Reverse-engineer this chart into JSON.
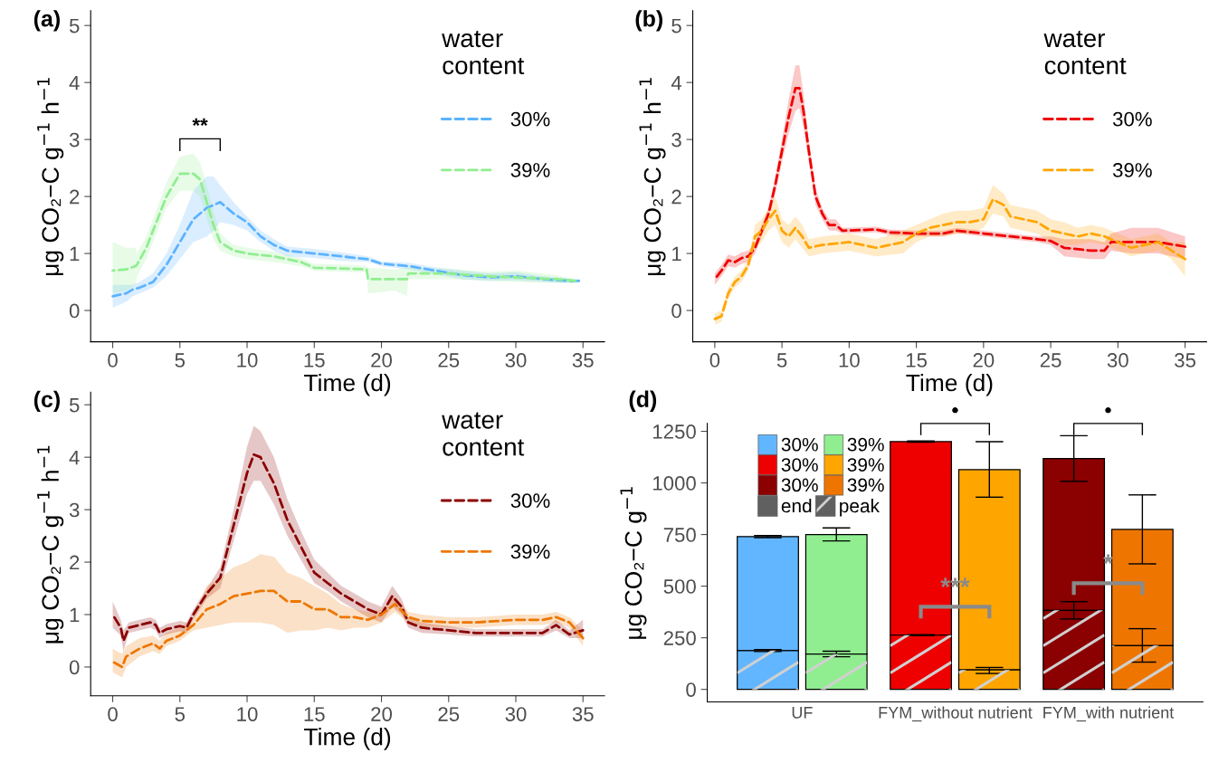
{
  "chart_data": [
    {
      "type": "line",
      "title": "(a)",
      "xlabel": "Time (d)",
      "ylabel": "μg CO₂−C g$^{−1}$ h$^{−1}$",
      "legend_title": "water\ncontent",
      "legend": "top right",
      "line_style": "dashed",
      "grid": false,
      "xlim": [
        -1.64,
        36.6
      ],
      "xticks": [
        0,
        5,
        10,
        15,
        20,
        25,
        30,
        35
      ],
      "ylim": [
        -0.55,
        5.26
      ],
      "yticks": [
        0,
        1,
        2,
        3,
        4,
        5
      ],
      "annotations": [
        "**"
      ],
      "series": [
        {
          "name": "30%",
          "color": "#5cb3ff",
          "x": [
            0,
            1,
            1.5,
            2,
            3,
            4,
            5,
            6,
            7,
            7.5,
            8,
            9,
            10,
            11,
            12,
            13,
            15,
            17,
            19,
            20,
            22,
            24,
            26,
            28,
            30,
            32,
            34,
            34.7
          ],
          "values": [
            0.25,
            0.3,
            0.37,
            0.4,
            0.5,
            0.8,
            1.2,
            1.6,
            1.8,
            1.85,
            1.9,
            1.7,
            1.55,
            1.3,
            1.15,
            1.05,
            1.0,
            0.95,
            0.9,
            0.82,
            0.78,
            0.7,
            0.62,
            0.58,
            0.6,
            0.55,
            0.52,
            0.52
          ],
          "lower": [
            0.05,
            0.15,
            0.25,
            0.3,
            0.4,
            0.6,
            0.9,
            1.2,
            1.3,
            1.4,
            1.55,
            1.5,
            1.4,
            1.2,
            1.05,
            0.95,
            0.92,
            0.87,
            0.85,
            0.78,
            0.72,
            0.64,
            0.55,
            0.52,
            0.53,
            0.5,
            0.48,
            0.5
          ],
          "upper": [
            0.45,
            0.45,
            0.45,
            0.5,
            0.65,
            1.0,
            1.5,
            2.1,
            2.35,
            2.35,
            2.2,
            1.9,
            1.65,
            1.4,
            1.25,
            1.12,
            1.08,
            1.02,
            0.95,
            0.86,
            0.84,
            0.76,
            0.7,
            0.65,
            0.67,
            0.6,
            0.56,
            0.55
          ]
        },
        {
          "name": "39%",
          "color": "#90ee90",
          "x": [
            0,
            1,
            1.7,
            1.8,
            2.5,
            3,
            4,
            5,
            6,
            6.5,
            7,
            7.5,
            8,
            9,
            10,
            12,
            14,
            15,
            18,
            18.9,
            19,
            21,
            21.9,
            22,
            25,
            28,
            30,
            33,
            34.45
          ],
          "values": [
            0.7,
            0.72,
            0.78,
            0.8,
            1.1,
            1.4,
            2.0,
            2.4,
            2.4,
            2.3,
            1.9,
            1.5,
            1.2,
            1.05,
            1.0,
            0.95,
            0.85,
            0.75,
            0.73,
            0.72,
            0.55,
            0.55,
            0.55,
            0.65,
            0.65,
            0.6,
            0.58,
            0.55,
            0.52
          ],
          "lower": [
            0.3,
            0.35,
            0.45,
            0.6,
            0.9,
            1.2,
            1.8,
            2.1,
            2.1,
            2.0,
            1.6,
            1.25,
            1.05,
            0.95,
            0.9,
            0.85,
            0.78,
            0.7,
            0.67,
            0.68,
            0.3,
            0.35,
            0.25,
            0.55,
            0.55,
            0.52,
            0.5,
            0.48,
            0.48
          ],
          "upper": [
            1.2,
            1.1,
            1.1,
            1.0,
            1.3,
            1.6,
            2.25,
            2.7,
            2.75,
            2.6,
            2.2,
            1.75,
            1.35,
            1.15,
            1.1,
            1.03,
            0.92,
            0.82,
            0.8,
            0.78,
            0.75,
            0.72,
            0.75,
            0.75,
            0.73,
            0.68,
            0.7,
            0.62,
            0.55
          ]
        }
      ]
    },
    {
      "type": "line",
      "title": "(b)",
      "xlabel": "Time (d)",
      "ylabel": "μg CO₂−C g$^{−1}$ h$^{−1}$",
      "legend_title": "water\ncontent",
      "legend": "top right",
      "line_style": "dashed",
      "grid": false,
      "xlim": [
        -1.64,
        36.6
      ],
      "xticks": [
        0,
        5,
        10,
        15,
        20,
        25,
        30,
        35
      ],
      "ylim": [
        -0.55,
        5.26
      ],
      "yticks": [
        0,
        1,
        2,
        3,
        4,
        5
      ],
      "series": [
        {
          "name": "30%",
          "color": "#ee0000",
          "x": [
            0,
            0.5,
            1,
            1.5,
            2,
            2.5,
            3,
            3.5,
            4,
            4.5,
            5,
            5.5,
            6,
            6.3,
            6.6,
            7,
            7.5,
            8,
            8.5,
            9,
            9.5,
            12,
            13,
            15,
            17,
            18,
            20,
            22,
            24,
            25,
            26,
            28,
            29,
            29.5,
            31,
            33,
            35
          ],
          "values": [
            0.55,
            0.7,
            0.88,
            0.85,
            0.92,
            0.95,
            1.1,
            1.4,
            1.7,
            2.2,
            2.8,
            3.4,
            3.9,
            3.9,
            3.5,
            2.8,
            2.0,
            1.7,
            1.5,
            1.5,
            1.4,
            1.42,
            1.37,
            1.35,
            1.35,
            1.4,
            1.35,
            1.3,
            1.25,
            1.22,
            1.1,
            1.05,
            1.05,
            1.2,
            1.2,
            1.2,
            1.12
          ],
          "lower": [
            0.45,
            0.6,
            0.78,
            0.75,
            0.82,
            0.85,
            1.0,
            1.3,
            1.6,
            2.05,
            2.6,
            3.1,
            3.5,
            3.55,
            3.2,
            2.6,
            1.85,
            1.6,
            1.4,
            1.4,
            1.35,
            1.37,
            1.32,
            1.3,
            1.3,
            1.35,
            1.3,
            1.25,
            1.2,
            1.15,
            0.95,
            0.9,
            0.9,
            1.05,
            1.0,
            1.0,
            0.9
          ],
          "upper": [
            0.65,
            0.8,
            0.98,
            0.95,
            1.02,
            1.05,
            1.2,
            1.5,
            1.8,
            2.35,
            3.0,
            3.7,
            4.3,
            4.3,
            3.8,
            3.0,
            2.15,
            1.8,
            1.6,
            1.6,
            1.45,
            1.47,
            1.42,
            1.4,
            1.4,
            1.45,
            1.4,
            1.35,
            1.3,
            1.3,
            1.25,
            1.25,
            1.2,
            1.35,
            1.45,
            1.45,
            1.3
          ]
        },
        {
          "name": "39%",
          "color": "#ffa500",
          "x": [
            0,
            0.5,
            1,
            1.5,
            2,
            2.5,
            3,
            3.5,
            4,
            4.5,
            5,
            5.5,
            6,
            6.5,
            7,
            8,
            10,
            12,
            14,
            15,
            16,
            17,
            18,
            19,
            20,
            20.7,
            21.5,
            22,
            24,
            25,
            26,
            27,
            28,
            29,
            30,
            31,
            32,
            33,
            34,
            35
          ],
          "values": [
            -0.15,
            -0.1,
            0.3,
            0.5,
            0.6,
            0.8,
            1.3,
            1.4,
            1.6,
            1.75,
            1.4,
            1.3,
            1.45,
            1.3,
            1.1,
            1.15,
            1.2,
            1.1,
            1.2,
            1.35,
            1.45,
            1.5,
            1.55,
            1.55,
            1.6,
            1.95,
            1.85,
            1.65,
            1.55,
            1.4,
            1.35,
            1.3,
            1.35,
            1.3,
            1.2,
            1.1,
            1.15,
            1.2,
            1.05,
            0.9
          ],
          "lower": [
            -0.25,
            -0.2,
            0.2,
            0.4,
            0.5,
            0.7,
            1.1,
            1.2,
            1.4,
            1.5,
            1.2,
            1.1,
            1.25,
            1.1,
            0.95,
            1.0,
            1.05,
            0.95,
            1.0,
            1.2,
            1.3,
            1.3,
            1.35,
            1.35,
            1.45,
            1.7,
            1.65,
            1.45,
            1.35,
            1.2,
            1.15,
            1.15,
            1.2,
            1.15,
            1.05,
            0.95,
            1.0,
            1.05,
            0.9,
            0.6
          ],
          "upper": [
            -0.05,
            0.0,
            0.4,
            0.6,
            0.7,
            0.9,
            1.5,
            1.6,
            1.8,
            2.0,
            1.6,
            1.5,
            1.65,
            1.5,
            1.25,
            1.3,
            1.35,
            1.25,
            1.4,
            1.5,
            1.6,
            1.7,
            1.75,
            1.75,
            1.8,
            2.2,
            2.05,
            1.85,
            1.75,
            1.6,
            1.55,
            1.45,
            1.5,
            1.45,
            1.35,
            1.25,
            1.3,
            1.35,
            1.2,
            1.2
          ]
        }
      ]
    },
    {
      "type": "line",
      "title": "(c)",
      "xlabel": "Time (d)",
      "ylabel": "μg CO₂−C g$^{−1}$ h$^{−1}$",
      "legend_title": "water\ncontent",
      "legend": "top right",
      "line_style": "dashed",
      "grid": false,
      "xlim": [
        -1.64,
        36.6
      ],
      "xticks": [
        0,
        5,
        10,
        15,
        20,
        25,
        30,
        35
      ],
      "ylim": [
        -0.55,
        5.24
      ],
      "yticks": [
        0,
        1,
        2,
        3,
        4,
        5
      ],
      "series": [
        {
          "name": "30%",
          "color": "#8b0000",
          "x": [
            0,
            0.6,
            0.8,
            1.2,
            2,
            2.8,
            3.2,
            3.5,
            4,
            5,
            5.5,
            6,
            7,
            8,
            9,
            10,
            10.5,
            11,
            12,
            13,
            14,
            15,
            16,
            17,
            18,
            19,
            20,
            20.8,
            21.5,
            22,
            23,
            25,
            27,
            30,
            32,
            33,
            34,
            35
          ],
          "values": [
            1.0,
            0.75,
            0.5,
            0.75,
            0.8,
            0.85,
            0.8,
            0.65,
            0.72,
            0.78,
            0.75,
            1.0,
            1.4,
            1.7,
            2.7,
            3.7,
            4.05,
            4.0,
            3.5,
            2.8,
            2.3,
            1.8,
            1.6,
            1.4,
            1.25,
            1.1,
            1.0,
            1.35,
            1.15,
            0.85,
            0.75,
            0.7,
            0.65,
            0.65,
            0.65,
            0.8,
            0.62,
            0.7
          ],
          "lower": [
            0.75,
            0.6,
            0.3,
            0.65,
            0.7,
            0.75,
            0.7,
            0.55,
            0.62,
            0.68,
            0.65,
            0.9,
            1.3,
            1.5,
            2.4,
            3.3,
            3.55,
            3.55,
            3.1,
            2.5,
            2.05,
            1.6,
            1.45,
            1.25,
            1.1,
            0.95,
            0.85,
            1.15,
            1.0,
            0.75,
            0.65,
            0.62,
            0.58,
            0.58,
            0.58,
            0.7,
            0.55,
            0.55
          ],
          "upper": [
            1.25,
            0.9,
            0.7,
            0.85,
            0.9,
            0.95,
            0.9,
            0.75,
            0.82,
            0.88,
            0.85,
            1.1,
            1.5,
            1.9,
            3.0,
            4.2,
            4.6,
            4.5,
            4.0,
            3.2,
            2.6,
            2.05,
            1.8,
            1.55,
            1.4,
            1.25,
            1.15,
            1.55,
            1.3,
            0.95,
            0.85,
            0.78,
            0.72,
            0.72,
            0.72,
            0.9,
            0.7,
            0.9
          ]
        },
        {
          "name": "39%",
          "color": "#ee7600",
          "x": [
            0,
            0.7,
            1,
            2,
            3,
            3.5,
            4,
            5,
            6,
            7,
            8,
            9,
            10,
            11,
            12,
            13,
            14,
            15,
            16,
            17,
            18,
            19,
            20,
            21,
            22,
            23,
            25,
            27,
            30,
            32,
            33,
            34,
            35
          ],
          "values": [
            0.1,
            0.0,
            0.2,
            0.35,
            0.45,
            0.35,
            0.5,
            0.6,
            0.8,
            1.1,
            1.2,
            1.35,
            1.4,
            1.45,
            1.45,
            1.25,
            1.25,
            1.1,
            1.1,
            0.95,
            0.95,
            0.9,
            1.0,
            1.2,
            0.95,
            0.88,
            0.85,
            0.85,
            0.9,
            0.9,
            0.95,
            0.85,
            0.55
          ],
          "lower": [
            -0.1,
            -0.2,
            0.0,
            0.2,
            0.3,
            0.25,
            0.4,
            0.5,
            0.7,
            0.75,
            0.8,
            0.85,
            0.85,
            0.85,
            0.8,
            0.65,
            0.7,
            0.7,
            0.75,
            0.7,
            0.75,
            0.75,
            0.85,
            1.05,
            0.85,
            0.78,
            0.75,
            0.75,
            0.8,
            0.8,
            0.85,
            0.75,
            0.4
          ],
          "upper": [
            0.35,
            0.25,
            0.4,
            0.55,
            0.6,
            0.5,
            0.65,
            0.75,
            0.95,
            1.55,
            1.7,
            1.9,
            2.0,
            2.15,
            2.1,
            1.8,
            1.7,
            1.55,
            1.4,
            1.2,
            1.1,
            1.05,
            1.1,
            1.35,
            1.05,
            1.0,
            0.95,
            0.95,
            1.0,
            1.0,
            1.05,
            0.95,
            0.7
          ]
        }
      ]
    },
    {
      "type": "bar",
      "title": "(d)",
      "ylabel": "μg CO₂−C g$^{−1}$",
      "legend": "top left",
      "grid": false,
      "categories": [
        "UF",
        "FYM_without nutrient",
        "FYM_with nutrient"
      ],
      "ylim": [
        -61,
        1288
      ],
      "yticks": [
        0,
        250,
        500,
        750,
        1000,
        1250
      ],
      "annotations": [
        "•",
        "•",
        {
          "text": "***",
          "x": "FYM_without nutrient",
          "y": 400
        },
        {
          "text": "*",
          "x": "FYM_with nutrient",
          "y": 514
        },
        "end",
        "peak"
      ],
      "series": [
        {
          "name": "30%",
          "colors": [
            "#62b6ff",
            "#ee0000",
            "#8b0000"
          ],
          "base": [
            188,
            263,
            383
          ],
          "values": [
            552,
            937,
            735
          ],
          "errors": [
            [
              735,
              745
            ],
            [
              1197,
              1203
            ],
            [
              1008,
              1229
            ]
          ]
        },
        {
          "name": "39%",
          "colors": [
            "#90ee90",
            "#ffa500",
            "#ee7600"
          ],
          "base": [
            171,
            94,
            212
          ],
          "values": [
            579,
            970,
            563
          ],
          "errors": [
            [
              719,
              782
            ],
            [
              931,
              1200
            ],
            [
              608,
              942
            ]
          ]
        },
        {
          "colors": [
            "#62b6ff",
            "#ee0000",
            "#8b0000"
          ],
          "values": [
            188,
            263,
            383
          ],
          "errors": [
            [
              183,
              193
            ],
            [
              261,
              265
            ],
            [
              341,
              425
            ]
          ]
        },
        {
          "colors": [
            "#90ee90",
            "#ffa500",
            "#ee7600"
          ],
          "values": [
            171,
            94,
            212
          ],
          "errors": [
            [
              158,
              185
            ],
            [
              77,
              106
            ],
            [
              132,
              294
            ]
          ]
        }
      ]
    }
  ]
}
